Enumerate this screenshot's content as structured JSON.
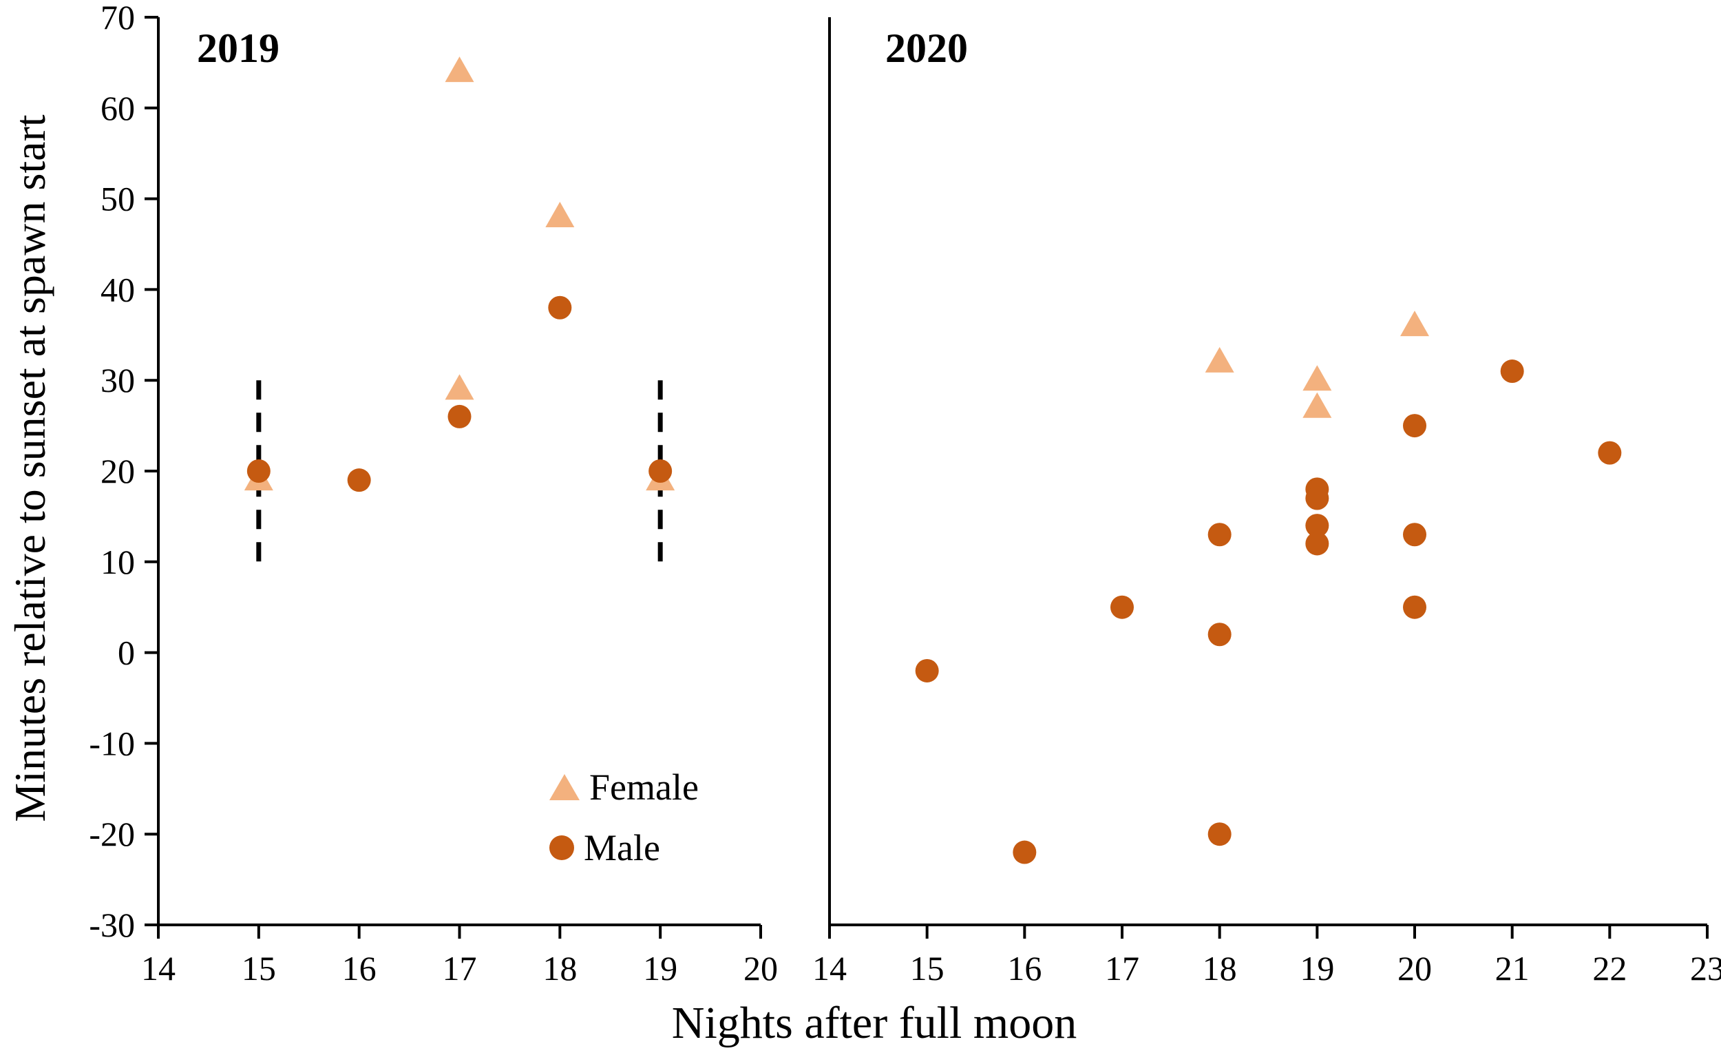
{
  "figure": {
    "y_axis_label": "Minutes relative to sunset at spawn start",
    "x_axis_label": "Nights after full moon",
    "colors": {
      "female": "#F3B17E",
      "male": "#C55A11",
      "axis": "#000000"
    },
    "legend": [
      {
        "label": "Female",
        "marker": "triangle"
      },
      {
        "label": "Male",
        "marker": "circle"
      }
    ]
  },
  "chart_data": [
    {
      "type": "scatter",
      "title": "2019",
      "xlabel": "Nights after full moon",
      "ylabel": "Minutes relative to sunset at spawn start",
      "xlim": [
        14,
        20
      ],
      "ylim": [
        -30,
        70
      ],
      "xticks": [
        14,
        15,
        16,
        17,
        18,
        19,
        20
      ],
      "yticks": [
        70,
        60,
        50,
        40,
        30,
        20,
        10,
        0,
        -10,
        -20,
        -30
      ],
      "grid": false,
      "legend_position": "lower-right-inside",
      "series": [
        {
          "name": "Female",
          "marker": "triangle",
          "points": [
            [
              15,
              19
            ],
            [
              17,
              29
            ],
            [
              17,
              64
            ],
            [
              18,
              48
            ],
            [
              19,
              19
            ]
          ]
        },
        {
          "name": "Male",
          "marker": "circle",
          "points": [
            [
              15,
              20
            ],
            [
              16,
              19
            ],
            [
              17,
              26
            ],
            [
              18,
              38
            ],
            [
              19,
              20
            ]
          ]
        }
      ],
      "dashed_error_bars": [
        {
          "x": 15,
          "y_from": 10,
          "y_to": 30
        },
        {
          "x": 19,
          "y_from": 10,
          "y_to": 30
        }
      ]
    },
    {
      "type": "scatter",
      "title": "2020",
      "xlabel": "Nights after full moon",
      "ylabel": "",
      "xlim": [
        14,
        23
      ],
      "ylim": [
        -30,
        70
      ],
      "xticks": [
        14,
        15,
        16,
        17,
        18,
        19,
        20,
        21,
        22,
        23
      ],
      "grid": false,
      "series": [
        {
          "name": "Female",
          "marker": "triangle",
          "points": [
            [
              18,
              32
            ],
            [
              19,
              30
            ],
            [
              19,
              27
            ],
            [
              20,
              36
            ]
          ]
        },
        {
          "name": "Male",
          "marker": "circle",
          "points": [
            [
              15,
              -2
            ],
            [
              16,
              -22
            ],
            [
              17,
              5
            ],
            [
              18,
              13
            ],
            [
              18,
              2
            ],
            [
              18,
              -20
            ],
            [
              19,
              18
            ],
            [
              19,
              17
            ],
            [
              19,
              14
            ],
            [
              19,
              12
            ],
            [
              20,
              25
            ],
            [
              20,
              13
            ],
            [
              20,
              5
            ],
            [
              21,
              31
            ],
            [
              22,
              22
            ]
          ]
        }
      ]
    }
  ]
}
